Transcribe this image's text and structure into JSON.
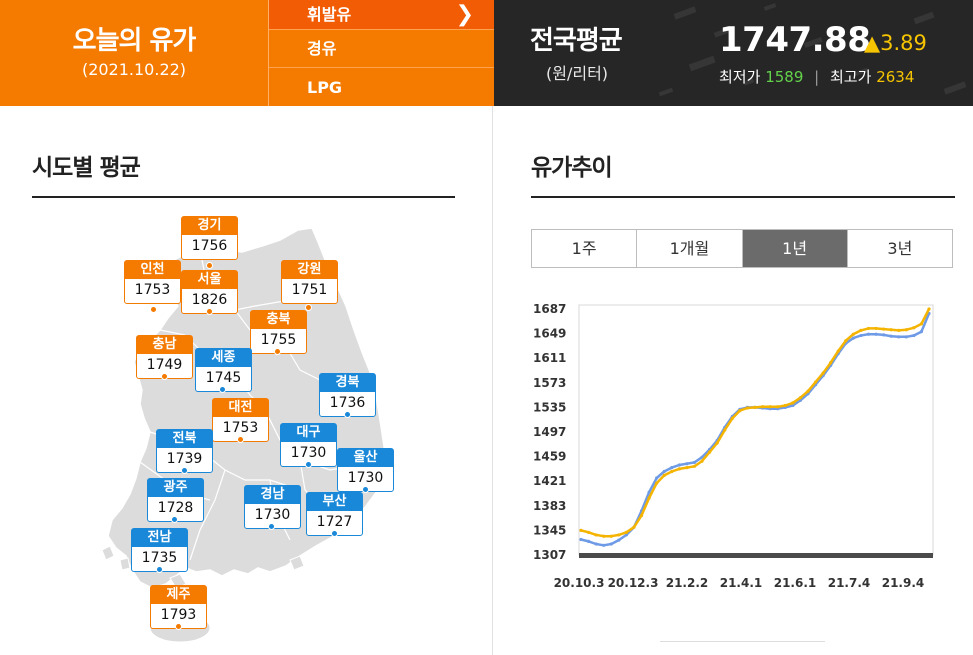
{
  "header": {
    "title": "오늘의 유가",
    "date": "(2021.10.22)",
    "fuel_menu": [
      {
        "label": "휘발유",
        "active": true
      },
      {
        "label": "경유",
        "active": false
      },
      {
        "label": "LPG",
        "active": false
      }
    ],
    "national": {
      "title": "전국평균",
      "unit": "(원/리터)",
      "price": "1747.88",
      "change": "▲3.89",
      "min_label": "최저가",
      "min_value": "1589",
      "max_label": "최고가",
      "max_value": "2634"
    }
  },
  "map_section": {
    "title": "시도별 평균",
    "regions": [
      {
        "name": "경기",
        "value": "1756",
        "color": "orange"
      },
      {
        "name": "인천",
        "value": "1753",
        "color": "orange"
      },
      {
        "name": "서울",
        "value": "1826",
        "color": "orange"
      },
      {
        "name": "강원",
        "value": "1751",
        "color": "orange"
      },
      {
        "name": "충북",
        "value": "1755",
        "color": "orange"
      },
      {
        "name": "충남",
        "value": "1749",
        "color": "orange"
      },
      {
        "name": "세종",
        "value": "1745",
        "color": "blue"
      },
      {
        "name": "경북",
        "value": "1736",
        "color": "blue"
      },
      {
        "name": "대전",
        "value": "1753",
        "color": "orange"
      },
      {
        "name": "전북",
        "value": "1739",
        "color": "blue"
      },
      {
        "name": "대구",
        "value": "1730",
        "color": "blue"
      },
      {
        "name": "울산",
        "value": "1730",
        "color": "blue"
      },
      {
        "name": "광주",
        "value": "1728",
        "color": "blue"
      },
      {
        "name": "경남",
        "value": "1730",
        "color": "blue"
      },
      {
        "name": "부산",
        "value": "1727",
        "color": "blue"
      },
      {
        "name": "전남",
        "value": "1735",
        "color": "blue"
      },
      {
        "name": "제주",
        "value": "1793",
        "color": "orange"
      }
    ]
  },
  "trend_section": {
    "title": "유가추이",
    "tabs": [
      {
        "label": "1주",
        "active": false
      },
      {
        "label": "1개월",
        "active": false
      },
      {
        "label": "1년",
        "active": true
      },
      {
        "label": "3년",
        "active": false
      }
    ]
  },
  "chart_data": {
    "type": "line",
    "yticks": [
      "1687",
      "1649",
      "1611",
      "1573",
      "1535",
      "1497",
      "1459",
      "1421",
      "1383",
      "1345",
      "1307"
    ],
    "ylim": [
      1307,
      1687
    ],
    "xticks": [
      "20.10.3",
      "20.12.3",
      "21.2.2",
      "21.4.1",
      "21.6.1",
      "21.7.4",
      "21.9.4"
    ],
    "series": [
      {
        "color": "#f4b400",
        "values": [
          1345,
          1342,
          1338,
          1336,
          1336,
          1338,
          1342,
          1350,
          1368,
          1395,
          1418,
          1430,
          1436,
          1440,
          1442,
          1444,
          1452,
          1466,
          1480,
          1500,
          1518,
          1530,
          1534,
          1535,
          1536,
          1536,
          1536,
          1538,
          1542,
          1550,
          1560,
          1574,
          1588,
          1604,
          1622,
          1638,
          1648,
          1654,
          1657,
          1657,
          1656,
          1655,
          1654,
          1655,
          1658,
          1664,
          1687
        ]
      },
      {
        "color": "#6e9ae6",
        "values": [
          1331,
          1328,
          1324,
          1322,
          1324,
          1330,
          1338,
          1350,
          1375,
          1404,
          1426,
          1436,
          1442,
          1446,
          1448,
          1450,
          1458,
          1470,
          1484,
          1504,
          1521,
          1532,
          1535,
          1535,
          1534,
          1533,
          1533,
          1535,
          1538,
          1546,
          1556,
          1570,
          1584,
          1600,
          1618,
          1634,
          1642,
          1646,
          1648,
          1648,
          1647,
          1645,
          1644,
          1644,
          1646,
          1652,
          1680
        ]
      }
    ],
    "grid": false
  }
}
